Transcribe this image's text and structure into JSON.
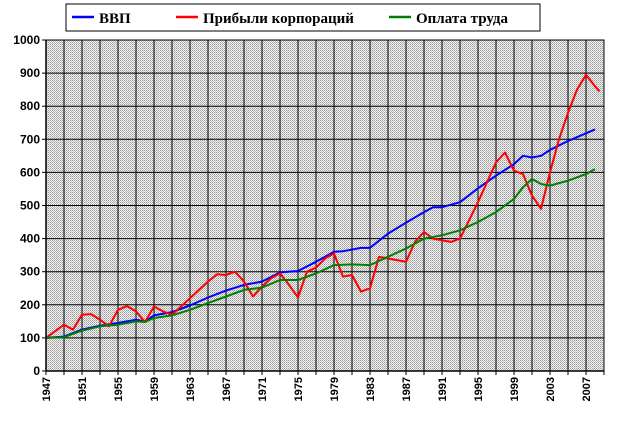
{
  "chart_data": {
    "type": "line",
    "title": "",
    "xlabel": "",
    "ylabel": "",
    "xlim": [
      1947,
      2009
    ],
    "ylim": [
      0,
      1000
    ],
    "grid": true,
    "legend_position": "top",
    "y_ticks": [
      0,
      100,
      200,
      300,
      400,
      500,
      600,
      700,
      800,
      900,
      1000
    ],
    "x_ticks": [
      "1947",
      "1951",
      "1955",
      "1959",
      "1963",
      "1967",
      "1971",
      "1975",
      "1979",
      "1983",
      "1987",
      "1991",
      "1995",
      "1999",
      "2003",
      "2007"
    ],
    "series": [
      {
        "name": "ВВП",
        "color": "#0000ff",
        "points": [
          [
            1947,
            100
          ],
          [
            1949,
            104
          ],
          [
            1951,
            125
          ],
          [
            1953,
            137
          ],
          [
            1955,
            145
          ],
          [
            1957,
            155
          ],
          [
            1958,
            150
          ],
          [
            1959,
            168
          ],
          [
            1961,
            178
          ],
          [
            1963,
            198
          ],
          [
            1965,
            222
          ],
          [
            1967,
            243
          ],
          [
            1969,
            260
          ],
          [
            1971,
            270
          ],
          [
            1973,
            298
          ],
          [
            1975,
            302
          ],
          [
            1977,
            330
          ],
          [
            1979,
            360
          ],
          [
            1980,
            362
          ],
          [
            1982,
            372
          ],
          [
            1983,
            372
          ],
          [
            1985,
            415
          ],
          [
            1987,
            448
          ],
          [
            1989,
            480
          ],
          [
            1990,
            495
          ],
          [
            1991,
            495
          ],
          [
            1993,
            510
          ],
          [
            1995,
            552
          ],
          [
            1997,
            590
          ],
          [
            1999,
            625
          ],
          [
            2000,
            650
          ],
          [
            2001,
            645
          ],
          [
            2002,
            650
          ],
          [
            2003,
            668
          ],
          [
            2005,
            695
          ],
          [
            2007,
            718
          ],
          [
            2008,
            730
          ]
        ]
      },
      {
        "name": "Прибыли корпораций",
        "color": "#ff0000",
        "points": [
          [
            1947,
            100
          ],
          [
            1948,
            120
          ],
          [
            1949,
            140
          ],
          [
            1950,
            125
          ],
          [
            1951,
            170
          ],
          [
            1952,
            172
          ],
          [
            1953,
            155
          ],
          [
            1954,
            135
          ],
          [
            1955,
            185
          ],
          [
            1956,
            196
          ],
          [
            1957,
            180
          ],
          [
            1958,
            148
          ],
          [
            1959,
            195
          ],
          [
            1960,
            180
          ],
          [
            1961,
            170
          ],
          [
            1962,
            195
          ],
          [
            1963,
            220
          ],
          [
            1964,
            245
          ],
          [
            1965,
            270
          ],
          [
            1966,
            292
          ],
          [
            1967,
            290
          ],
          [
            1968,
            300
          ],
          [
            1969,
            270
          ],
          [
            1970,
            225
          ],
          [
            1971,
            255
          ],
          [
            1972,
            280
          ],
          [
            1973,
            295
          ],
          [
            1974,
            260
          ],
          [
            1975,
            222
          ],
          [
            1976,
            300
          ],
          [
            1977,
            312
          ],
          [
            1978,
            340
          ],
          [
            1979,
            355
          ],
          [
            1980,
            285
          ],
          [
            1981,
            290
          ],
          [
            1982,
            240
          ],
          [
            1983,
            250
          ],
          [
            1984,
            345
          ],
          [
            1985,
            340
          ],
          [
            1986,
            335
          ],
          [
            1987,
            330
          ],
          [
            1988,
            390
          ],
          [
            1989,
            420
          ],
          [
            1990,
            400
          ],
          [
            1991,
            395
          ],
          [
            1992,
            390
          ],
          [
            1993,
            400
          ],
          [
            1994,
            455
          ],
          [
            1995,
            510
          ],
          [
            1996,
            570
          ],
          [
            1997,
            630
          ],
          [
            1998,
            660
          ],
          [
            1999,
            605
          ],
          [
            2000,
            595
          ],
          [
            2001,
            530
          ],
          [
            2002,
            490
          ],
          [
            2003,
            600
          ],
          [
            2004,
            700
          ],
          [
            2005,
            780
          ],
          [
            2006,
            850
          ],
          [
            2007,
            895
          ],
          [
            2008,
            860
          ],
          [
            2008.5,
            845
          ]
        ]
      },
      {
        "name": "Оплата труда",
        "color": "#008000",
        "points": [
          [
            1947,
            100
          ],
          [
            1949,
            102
          ],
          [
            1951,
            122
          ],
          [
            1953,
            135
          ],
          [
            1955,
            140
          ],
          [
            1957,
            150
          ],
          [
            1958,
            148
          ],
          [
            1959,
            160
          ],
          [
            1961,
            168
          ],
          [
            1963,
            185
          ],
          [
            1965,
            205
          ],
          [
            1967,
            225
          ],
          [
            1969,
            245
          ],
          [
            1971,
            252
          ],
          [
            1973,
            275
          ],
          [
            1975,
            275
          ],
          [
            1977,
            295
          ],
          [
            1979,
            320
          ],
          [
            1981,
            322
          ],
          [
            1983,
            320
          ],
          [
            1985,
            345
          ],
          [
            1987,
            370
          ],
          [
            1989,
            400
          ],
          [
            1991,
            410
          ],
          [
            1993,
            425
          ],
          [
            1995,
            450
          ],
          [
            1997,
            480
          ],
          [
            1999,
            520
          ],
          [
            2000,
            555
          ],
          [
            2001,
            580
          ],
          [
            2002,
            565
          ],
          [
            2003,
            560
          ],
          [
            2005,
            575
          ],
          [
            2007,
            595
          ],
          [
            2008,
            610
          ]
        ]
      }
    ]
  }
}
